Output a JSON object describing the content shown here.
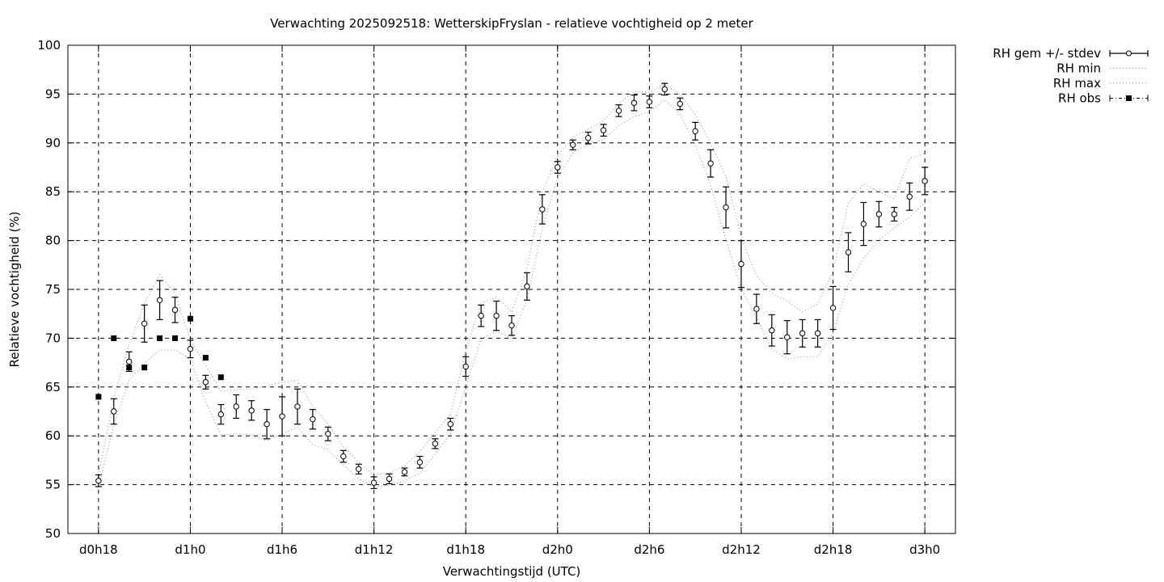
{
  "chart_data": {
    "type": "line",
    "title": "Verwachting 2025092518: WetterskipFryslan - relatieve vochtigheid op 2 meter",
    "xlabel": "Verwachtingstijd (UTC)",
    "ylabel": "Relatieve vochtigheid (%)",
    "xlim": [
      16,
      74
    ],
    "ylim": [
      50,
      100
    ],
    "grid": true,
    "legend_position": "outside-top-right",
    "xticks": [
      {
        "value": 18,
        "label": "d0h18"
      },
      {
        "value": 24,
        "label": "d1h0"
      },
      {
        "value": 30,
        "label": "d1h6"
      },
      {
        "value": 36,
        "label": "d1h12"
      },
      {
        "value": 42,
        "label": "d1h18"
      },
      {
        "value": 48,
        "label": "d2h0"
      },
      {
        "value": 54,
        "label": "d2h6"
      },
      {
        "value": 60,
        "label": "d2h12"
      },
      {
        "value": 66,
        "label": "d2h18"
      },
      {
        "value": 72,
        "label": "d3h0"
      }
    ],
    "yticks": [
      50,
      55,
      60,
      65,
      70,
      75,
      80,
      85,
      90,
      95,
      100
    ],
    "legend": [
      {
        "label": "RH gem +/- stdev",
        "style": "errorbar-circle"
      },
      {
        "label": "RH min",
        "style": "dotted"
      },
      {
        "label": "RH max",
        "style": "dotted"
      },
      {
        "label": "RH obs",
        "style": "dashdot-square"
      }
    ],
    "series": [
      {
        "name": "RH gem +/- stdev",
        "x": [
          18,
          19,
          20,
          21,
          22,
          23,
          24,
          25,
          26,
          27,
          28,
          29,
          30,
          31,
          32,
          33,
          34,
          35,
          36,
          37,
          38,
          39,
          40,
          41,
          42,
          43,
          44,
          45,
          46,
          47,
          48,
          49,
          50,
          51,
          52,
          53,
          54,
          55,
          56,
          57,
          58,
          59,
          60,
          61,
          62,
          63,
          64,
          65,
          66,
          67,
          68,
          69,
          70,
          71,
          72
        ],
        "y": [
          55.4,
          62.5,
          67.6,
          71.5,
          73.9,
          72.9,
          68.9,
          65.5,
          62.2,
          63.0,
          62.6,
          61.2,
          62.0,
          63.0,
          61.7,
          60.2,
          57.9,
          56.6,
          55.2,
          55.6,
          56.3,
          57.3,
          59.2,
          61.2,
          67.1,
          72.3,
          72.3,
          71.3,
          75.3,
          83.2,
          87.5,
          89.8,
          90.5,
          91.3,
          93.3,
          94.1,
          94.2,
          95.5,
          94.0,
          91.2,
          87.9,
          83.4,
          77.6,
          73.0,
          70.8,
          70.1,
          70.5,
          70.5,
          73.1,
          78.8,
          81.7,
          82.7,
          82.7,
          84.5,
          86.1
        ],
        "stdev": [
          0.6,
          1.3,
          1.0,
          1.9,
          2.0,
          1.3,
          0.9,
          0.7,
          1.0,
          1.2,
          1.0,
          1.5,
          2.0,
          1.8,
          1.0,
          0.7,
          0.6,
          0.5,
          0.6,
          0.5,
          0.4,
          0.6,
          0.5,
          0.6,
          1.0,
          1.1,
          1.5,
          1.0,
          1.4,
          1.5,
          0.6,
          0.5,
          0.6,
          0.6,
          0.6,
          0.8,
          0.6,
          0.6,
          0.6,
          0.9,
          1.4,
          2.1,
          2.4,
          1.5,
          1.6,
          1.7,
          1.4,
          1.4,
          2.2,
          2.0,
          2.2,
          1.3,
          0.7,
          1.4,
          1.4
        ]
      },
      {
        "name": "RH min",
        "x": [
          18,
          19,
          20,
          21,
          22,
          23,
          24,
          25,
          26,
          27,
          28,
          29,
          30,
          31,
          32,
          33,
          34,
          35,
          36,
          37,
          38,
          39,
          40,
          41,
          42,
          43,
          44,
          45,
          46,
          47,
          48,
          49,
          50,
          51,
          52,
          53,
          54,
          55,
          56,
          57,
          58,
          59,
          60,
          61,
          62,
          63,
          64,
          65,
          66,
          67,
          68,
          69,
          70,
          71,
          72
        ],
        "y": [
          54.8,
          61.1,
          65.7,
          67.4,
          68.8,
          68.8,
          67.9,
          63.5,
          60.1,
          60.2,
          60.1,
          59.5,
          60.2,
          60.9,
          59.1,
          58.6,
          57.0,
          55.6,
          54.8,
          54.9,
          55.4,
          56.2,
          58.1,
          60.2,
          65.1,
          69.9,
          70.7,
          70.0,
          73.9,
          81.3,
          86.4,
          89.0,
          89.9,
          90.3,
          91.8,
          92.7,
          93.2,
          94.4,
          93.0,
          89.8,
          85.7,
          80.1,
          75.1,
          72.1,
          68.9,
          67.9,
          68.1,
          68.1,
          70.6,
          75.5,
          78.2,
          80.1,
          81.3,
          82.4,
          83.9
        ]
      },
      {
        "name": "RH max",
        "x": [
          18,
          19,
          20,
          21,
          22,
          23,
          24,
          25,
          26,
          27,
          28,
          29,
          30,
          31,
          32,
          33,
          34,
          35,
          36,
          37,
          38,
          39,
          40,
          41,
          42,
          43,
          44,
          45,
          46,
          47,
          48,
          49,
          50,
          51,
          52,
          53,
          54,
          55,
          56,
          57,
          58,
          59,
          60,
          61,
          62,
          63,
          64,
          65,
          66,
          67,
          68,
          69,
          70,
          71,
          72
        ],
        "y": [
          56.0,
          63.9,
          69.3,
          73.6,
          76.5,
          74.6,
          69.8,
          67.2,
          64.6,
          64.7,
          64.8,
          65.1,
          65.5,
          65.7,
          63.0,
          61.2,
          58.9,
          57.3,
          56.0,
          56.2,
          56.9,
          58.4,
          60.3,
          62.2,
          68.7,
          73.6,
          74.2,
          72.7,
          77.1,
          85.0,
          88.7,
          90.6,
          91.4,
          92.3,
          94.0,
          95.3,
          95.2,
          96.0,
          95.0,
          92.9,
          90.0,
          86.6,
          80.3,
          76.4,
          74.6,
          73.8,
          72.7,
          73.5,
          76.9,
          83.8,
          85.8,
          85.0,
          84.3,
          88.4,
          88.9
        ]
      },
      {
        "name": "RH obs",
        "x": [
          18,
          19,
          20,
          21,
          22,
          23,
          24,
          25,
          26
        ],
        "y": [
          64,
          70,
          67,
          67,
          70,
          70,
          72,
          68,
          66
        ]
      }
    ]
  }
}
